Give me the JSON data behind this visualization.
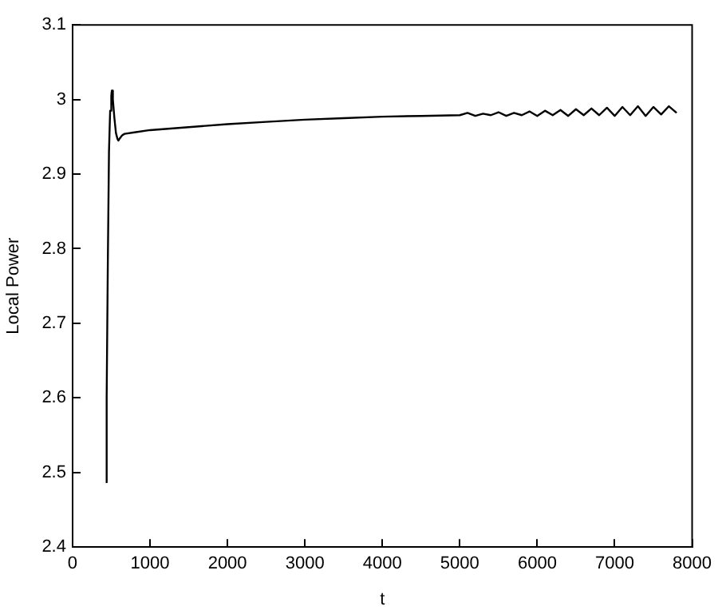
{
  "chart_data": {
    "type": "line",
    "xlabel": "t",
    "ylabel": "Local Power",
    "x": [
      428,
      440,
      455,
      470,
      485,
      500,
      507,
      520,
      540,
      560,
      580,
      592,
      610,
      640,
      671,
      800,
      1000,
      1500,
      2000,
      2500,
      3000,
      3500,
      4000,
      4500,
      5000,
      5100,
      5200,
      5300,
      5400,
      5500,
      5600,
      5700,
      5800,
      5900,
      6000,
      6100,
      6200,
      6300,
      6400,
      6500,
      6600,
      6700,
      6800,
      6900,
      7000,
      7100,
      7200,
      7300,
      7400,
      7500,
      7600,
      7700,
      7800
    ],
    "series": [
      {
        "color": "#000000",
        "values": [
          2.487,
          2.6,
          2.78,
          2.93,
          2.985,
          3.005,
          3.012,
          3.0,
          2.975,
          2.955,
          2.947,
          2.945,
          2.948,
          2.952,
          2.954,
          2.956,
          2.959,
          2.963,
          2.967,
          2.97,
          2.973,
          2.975,
          2.977,
          2.978,
          2.979,
          2.982,
          2.978,
          2.981,
          2.979,
          2.983,
          2.978,
          2.982,
          2.979,
          2.984,
          2.978,
          2.985,
          2.979,
          2.986,
          2.978,
          2.987,
          2.979,
          2.988,
          2.979,
          2.989,
          2.978,
          2.99,
          2.979,
          2.991,
          2.978,
          2.99,
          2.98,
          2.991,
          2.982
        ]
      }
    ],
    "xlim": [
      0,
      8000
    ],
    "xticks": [
      0,
      1000,
      2000,
      3000,
      4000,
      5000,
      6000,
      7000,
      8000
    ],
    "ylim": [
      2.4,
      3.1
    ],
    "yticks": [
      2.4,
      2.5,
      2.6,
      2.7,
      2.8,
      2.9,
      3,
      3.1
    ],
    "grid": false,
    "legend": false,
    "marker": "none",
    "line_style": "solid"
  }
}
